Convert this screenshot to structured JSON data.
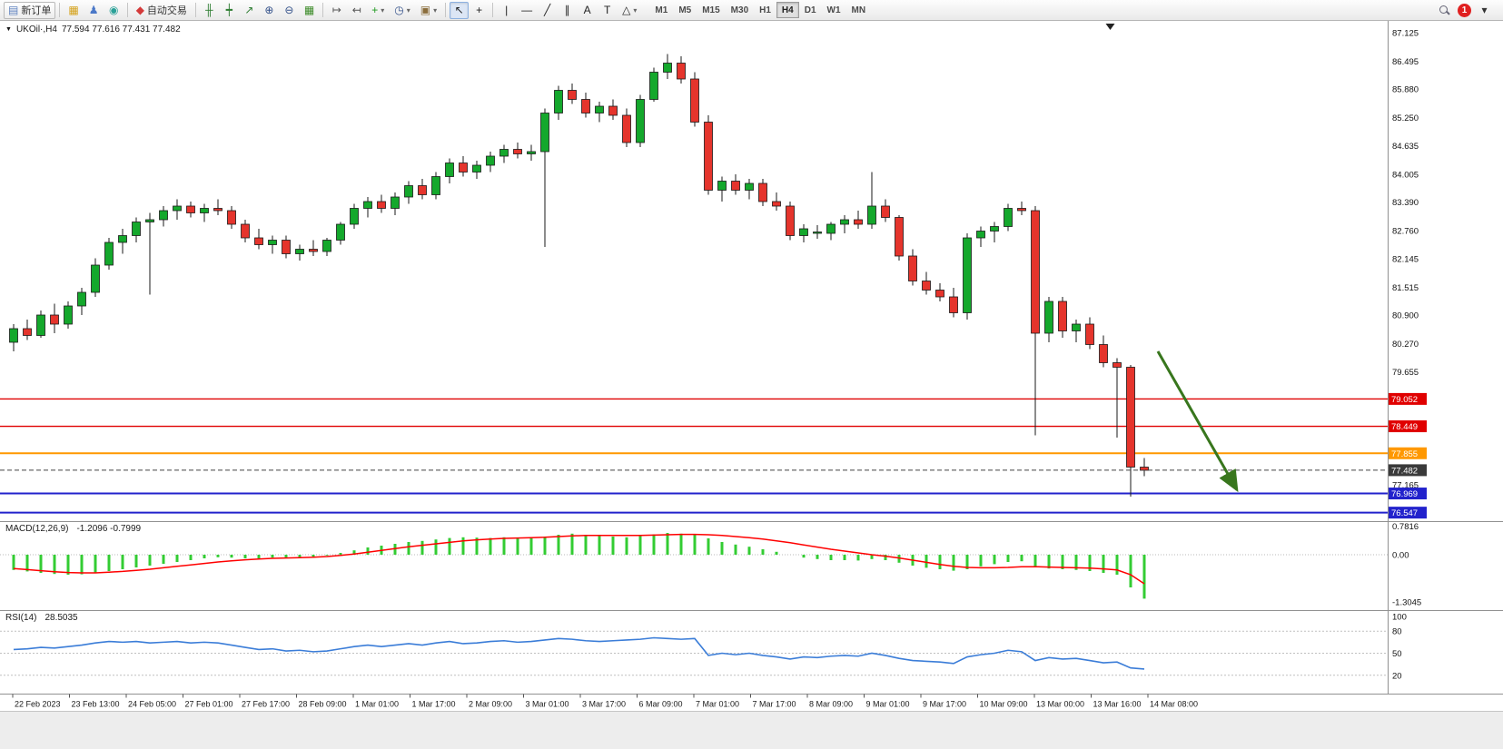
{
  "glyphs": {
    "symbol_dropdown": "▼"
  },
  "toolbar": {
    "notification_count": "1",
    "overflow_glyph": "▾",
    "timeframes": [
      "M1",
      "M5",
      "M15",
      "M30",
      "H1",
      "H4",
      "D1",
      "W1",
      "MN"
    ],
    "active_timeframe": "H4",
    "items": [
      {
        "type": "button",
        "name": "new-order-button",
        "glyph": "▤",
        "glyph_color": "#5b7fbe",
        "label": "新订单",
        "framed": true
      },
      {
        "type": "sep"
      },
      {
        "type": "button",
        "name": "new-chart-button",
        "glyph": "▦",
        "glyph_color": "#d4a017"
      },
      {
        "type": "button",
        "name": "profiles-button",
        "glyph": "♟",
        "glyph_color": "#4a78c8"
      },
      {
        "type": "button",
        "name": "community-button",
        "glyph": "◉",
        "glyph_color": "#2aa198"
      },
      {
        "type": "sep"
      },
      {
        "type": "button",
        "name": "autotrading-button",
        "glyph": "◆",
        "glyph_color": "#d43a3a",
        "label": "自动交易"
      },
      {
        "type": "sep"
      },
      {
        "type": "button",
        "name": "bar-chart-mode-button",
        "glyph": "╫",
        "glyph_color": "#2e7d32"
      },
      {
        "type": "button",
        "name": "candlestick-mode-button",
        "glyph": "┿",
        "glyph_color": "#2e7d32"
      },
      {
        "type": "button",
        "name": "line-chart-mode-button",
        "glyph": "↗",
        "glyph_color": "#2e7d32"
      },
      {
        "type": "button",
        "name": "zoom-in-button",
        "glyph": "⊕",
        "glyph_color": "#33518a"
      },
      {
        "type": "button",
        "name": "zoom-out-button",
        "glyph": "⊖",
        "glyph_color": "#33518a"
      },
      {
        "type": "button",
        "name": "tile-windows-button",
        "glyph": "▦",
        "glyph_color": "#3a8a26"
      },
      {
        "type": "sep"
      },
      {
        "type": "button",
        "name": "auto-scroll-button",
        "glyph": "↦",
        "glyph_color": "#555555"
      },
      {
        "type": "button",
        "name": "chart-shift-button",
        "glyph": "↤",
        "glyph_color": "#555555"
      },
      {
        "type": "button",
        "name": "indicators-button",
        "glyph": "+",
        "glyph_color": "#1e9b1e",
        "dropdown": true
      },
      {
        "type": "button",
        "name": "periods-button",
        "glyph": "◷",
        "glyph_color": "#33518a",
        "dropdown": true
      },
      {
        "type": "button",
        "name": "templates-button",
        "glyph": "▣",
        "glyph_color": "#8a6d3b",
        "dropdown": true
      },
      {
        "type": "sep"
      },
      {
        "type": "button",
        "name": "cursor-button",
        "glyph": "↖",
        "glyph_color": "#222222",
        "active": true
      },
      {
        "type": "button",
        "name": "crosshair-button",
        "glyph": "+",
        "glyph_color": "#222222"
      },
      {
        "type": "sep"
      },
      {
        "type": "button",
        "name": "vertical-line-button",
        "glyph": "|",
        "glyph_color": "#222222"
      },
      {
        "type": "button",
        "name": "horizontal-line-button",
        "glyph": "—",
        "glyph_color": "#222222"
      },
      {
        "type": "button",
        "name": "trendline-button",
        "glyph": "╱",
        "glyph_color": "#222222"
      },
      {
        "type": "button",
        "name": "channel-button",
        "glyph": "∥",
        "glyph_color": "#222222"
      },
      {
        "type": "button",
        "name": "text-button",
        "glyph": "A",
        "glyph_color": "#222222"
      },
      {
        "type": "button",
        "name": "text-label-button",
        "glyph": "T",
        "glyph_color": "#222222"
      },
      {
        "type": "button",
        "name": "shapes-button",
        "glyph": "△",
        "glyph_color": "#222222",
        "dropdown": true
      }
    ]
  },
  "chart_data": {
    "type": "candlestick",
    "symbol_period": "UKOil·,H4",
    "ohlc_display": "77.594 77.616 77.431 77.482",
    "quote": {
      "open": "77.594",
      "high": "77.616",
      "low": "77.431",
      "close": "77.482"
    },
    "price_axis": {
      "max": 87.34,
      "min": 76.42,
      "ticks": [
        "87.125",
        "86.495",
        "85.880",
        "85.250",
        "84.635",
        "84.005",
        "83.390",
        "82.760",
        "82.145",
        "81.515",
        "80.900",
        "80.270",
        "79.655",
        "77.165"
      ]
    },
    "time_labels": [
      "22 Feb 2023",
      "23 Feb 13:00",
      "24 Feb 05:00",
      "27 Feb 01:00",
      "27 Feb 17:00",
      "28 Feb 09:00",
      "1 Mar 01:00",
      "1 Mar 17:00",
      "2 Mar 09:00",
      "3 Mar 01:00",
      "3 Mar 17:00",
      "6 Mar 09:00",
      "7 Mar 01:00",
      "7 Mar 17:00",
      "8 Mar 09:00",
      "9 Mar 01:00",
      "9 Mar 17:00",
      "10 Mar 09:00",
      "13 Mar 00:00",
      "13 Mar 16:00",
      "14 Mar 08:00"
    ],
    "ohlc": [
      [
        80.3,
        80.7,
        80.1,
        80.6
      ],
      [
        80.6,
        80.8,
        80.35,
        80.45
      ],
      [
        80.45,
        81.0,
        80.4,
        80.9
      ],
      [
        80.9,
        81.15,
        80.5,
        80.7
      ],
      [
        80.7,
        81.2,
        80.6,
        81.1
      ],
      [
        81.1,
        81.5,
        80.9,
        81.4
      ],
      [
        81.4,
        82.15,
        81.3,
        82.0
      ],
      [
        82.0,
        82.6,
        81.9,
        82.5
      ],
      [
        82.5,
        82.8,
        82.25,
        82.65
      ],
      [
        82.65,
        83.05,
        82.5,
        82.95
      ],
      [
        82.95,
        83.15,
        81.35,
        83.0
      ],
      [
        83.0,
        83.3,
        82.85,
        83.2
      ],
      [
        83.2,
        83.45,
        83.0,
        83.3
      ],
      [
        83.3,
        83.4,
        83.05,
        83.15
      ],
      [
        83.15,
        83.35,
        82.95,
        83.25
      ],
      [
        83.25,
        83.45,
        83.1,
        83.2
      ],
      [
        83.2,
        83.3,
        82.8,
        82.9
      ],
      [
        82.9,
        83.0,
        82.5,
        82.6
      ],
      [
        82.6,
        82.8,
        82.35,
        82.45
      ],
      [
        82.45,
        82.65,
        82.25,
        82.55
      ],
      [
        82.55,
        82.65,
        82.15,
        82.25
      ],
      [
        82.25,
        82.45,
        82.1,
        82.35
      ],
      [
        82.35,
        82.55,
        82.2,
        82.3
      ],
      [
        82.3,
        82.6,
        82.2,
        82.55
      ],
      [
        82.55,
        82.95,
        82.45,
        82.9
      ],
      [
        82.9,
        83.35,
        82.8,
        83.25
      ],
      [
        83.25,
        83.5,
        83.05,
        83.4
      ],
      [
        83.4,
        83.55,
        83.15,
        83.25
      ],
      [
        83.25,
        83.6,
        83.1,
        83.5
      ],
      [
        83.5,
        83.85,
        83.35,
        83.75
      ],
      [
        83.75,
        83.9,
        83.45,
        83.55
      ],
      [
        83.55,
        84.05,
        83.45,
        83.95
      ],
      [
        83.95,
        84.35,
        83.8,
        84.25
      ],
      [
        84.25,
        84.4,
        83.95,
        84.05
      ],
      [
        84.05,
        84.3,
        83.9,
        84.2
      ],
      [
        84.2,
        84.5,
        84.05,
        84.4
      ],
      [
        84.4,
        84.65,
        84.25,
        84.55
      ],
      [
        84.55,
        84.7,
        84.35,
        84.45
      ],
      [
        84.45,
        84.65,
        84.3,
        84.5
      ],
      [
        84.5,
        85.45,
        82.4,
        85.35
      ],
      [
        85.35,
        85.95,
        85.2,
        85.85
      ],
      [
        85.85,
        86.0,
        85.55,
        85.65
      ],
      [
        85.65,
        85.8,
        85.25,
        85.35
      ],
      [
        85.35,
        85.6,
        85.15,
        85.5
      ],
      [
        85.5,
        85.65,
        85.2,
        85.3
      ],
      [
        85.3,
        85.45,
        84.6,
        84.7
      ],
      [
        84.7,
        85.75,
        84.6,
        85.65
      ],
      [
        85.65,
        86.35,
        85.6,
        86.25
      ],
      [
        86.25,
        86.65,
        86.1,
        86.45
      ],
      [
        86.45,
        86.6,
        86.0,
        86.1
      ],
      [
        86.1,
        86.25,
        85.05,
        85.15
      ],
      [
        85.15,
        85.3,
        83.55,
        83.65
      ],
      [
        83.65,
        83.95,
        83.4,
        83.85
      ],
      [
        83.85,
        84.0,
        83.55,
        83.65
      ],
      [
        83.65,
        83.9,
        83.45,
        83.8
      ],
      [
        83.8,
        83.9,
        83.3,
        83.4
      ],
      [
        83.4,
        83.6,
        83.2,
        83.3
      ],
      [
        83.3,
        83.4,
        82.55,
        82.65
      ],
      [
        82.65,
        82.9,
        82.5,
        82.8
      ],
      [
        82.7,
        82.88,
        82.58,
        82.73
      ],
      [
        82.7,
        82.95,
        82.55,
        82.9
      ],
      [
        82.9,
        83.1,
        82.7,
        83.0
      ],
      [
        83.0,
        83.2,
        82.8,
        82.9
      ],
      [
        82.9,
        84.05,
        82.8,
        83.3
      ],
      [
        83.3,
        83.45,
        82.95,
        83.05
      ],
      [
        83.05,
        83.1,
        82.1,
        82.2
      ],
      [
        82.2,
        82.35,
        81.55,
        81.65
      ],
      [
        81.65,
        81.85,
        81.35,
        81.45
      ],
      [
        81.45,
        81.6,
        81.2,
        81.3
      ],
      [
        81.3,
        81.5,
        80.85,
        80.95
      ],
      [
        80.95,
        82.7,
        80.8,
        82.6
      ],
      [
        82.6,
        82.85,
        82.4,
        82.75
      ],
      [
        82.75,
        82.95,
        82.5,
        82.85
      ],
      [
        82.85,
        83.35,
        82.75,
        83.25
      ],
      [
        83.25,
        83.4,
        83.1,
        83.2
      ],
      [
        83.2,
        83.3,
        78.25,
        80.5
      ],
      [
        80.5,
        81.3,
        80.3,
        81.2
      ],
      [
        81.2,
        81.3,
        80.4,
        80.55
      ],
      [
        80.55,
        80.8,
        80.3,
        80.7
      ],
      [
        80.7,
        80.85,
        80.15,
        80.25
      ],
      [
        80.25,
        80.45,
        79.75,
        79.85
      ],
      [
        79.85,
        79.95,
        78.2,
        79.75
      ],
      [
        79.75,
        79.8,
        76.9,
        77.55
      ],
      [
        77.55,
        77.75,
        77.35,
        77.48
      ]
    ],
    "hlines": [
      {
        "value": 79.052,
        "label": "79.052",
        "color": "#e00000",
        "width": 1.4
      },
      {
        "value": 78.449,
        "label": "78.449",
        "color": "#e00000",
        "width": 1.4
      },
      {
        "value": 77.855,
        "label": "77.855",
        "color": "#ff9800",
        "width": 2
      },
      {
        "value": 76.969,
        "label": "76.969",
        "color": "#2222cc",
        "width": 2
      },
      {
        "value": 76.547,
        "label": "76.547",
        "color": "#2222cc",
        "width": 2
      }
    ],
    "current_price": {
      "value": 77.482,
      "label": "77.482",
      "color": "#3a3a3a"
    },
    "indicators": {
      "macd": {
        "label": "MACD(12,26,9)",
        "value_text": "-1.2096 -0.7999",
        "axis_ticks": [
          "0.7816",
          "0.00",
          "-1.3045"
        ],
        "range": [
          -1.45,
          0.85
        ],
        "histogram": [
          -0.42,
          -0.46,
          -0.5,
          -0.53,
          -0.55,
          -0.54,
          -0.5,
          -0.45,
          -0.4,
          -0.35,
          -0.3,
          -0.25,
          -0.2,
          -0.15,
          -0.1,
          -0.07,
          -0.08,
          -0.1,
          -0.1,
          -0.08,
          -0.1,
          -0.09,
          -0.06,
          -0.02,
          0.05,
          0.12,
          0.2,
          0.25,
          0.3,
          0.35,
          0.38,
          0.42,
          0.46,
          0.48,
          0.47,
          0.46,
          0.48,
          0.47,
          0.45,
          0.5,
          0.55,
          0.58,
          0.55,
          0.52,
          0.5,
          0.48,
          0.52,
          0.56,
          0.6,
          0.58,
          0.55,
          0.45,
          0.35,
          0.28,
          0.22,
          0.15,
          0.08,
          0.0,
          -0.08,
          -0.12,
          -0.15,
          -0.15,
          -0.16,
          -0.12,
          -0.15,
          -0.22,
          -0.3,
          -0.36,
          -0.4,
          -0.44,
          -0.4,
          -0.32,
          -0.26,
          -0.2,
          -0.18,
          -0.35,
          -0.38,
          -0.4,
          -0.42,
          -0.45,
          -0.5,
          -0.55,
          -0.9,
          -1.21
        ],
        "signal": [
          -0.38,
          -0.41,
          -0.44,
          -0.47,
          -0.49,
          -0.5,
          -0.5,
          -0.48,
          -0.46,
          -0.43,
          -0.4,
          -0.36,
          -0.32,
          -0.28,
          -0.24,
          -0.2,
          -0.17,
          -0.14,
          -0.12,
          -0.1,
          -0.09,
          -0.08,
          -0.07,
          -0.05,
          -0.02,
          0.02,
          0.07,
          0.12,
          0.17,
          0.22,
          0.26,
          0.3,
          0.34,
          0.38,
          0.41,
          0.43,
          0.45,
          0.46,
          0.47,
          0.48,
          0.5,
          0.52,
          0.53,
          0.53,
          0.53,
          0.53,
          0.53,
          0.54,
          0.55,
          0.56,
          0.56,
          0.55,
          0.53,
          0.5,
          0.47,
          0.43,
          0.38,
          0.33,
          0.27,
          0.21,
          0.15,
          0.1,
          0.05,
          0.0,
          -0.04,
          -0.09,
          -0.15,
          -0.21,
          -0.27,
          -0.32,
          -0.35,
          -0.36,
          -0.36,
          -0.35,
          -0.33,
          -0.33,
          -0.34,
          -0.35,
          -0.36,
          -0.37,
          -0.39,
          -0.42,
          -0.55,
          -0.8
        ]
      },
      "rsi": {
        "label": "RSI(14)",
        "value_text": "28.5035",
        "axis_ticks": [
          "100",
          "80",
          "50",
          "20"
        ],
        "levels": [
          80,
          50,
          20
        ],
        "range": [
          0,
          100
        ],
        "values": [
          55,
          56,
          58,
          57,
          59,
          61,
          64,
          66,
          65,
          66,
          64,
          65,
          66,
          64,
          65,
          64,
          61,
          58,
          55,
          56,
          53,
          54,
          52,
          53,
          56,
          59,
          61,
          59,
          61,
          63,
          61,
          64,
          66,
          63,
          64,
          66,
          67,
          65,
          66,
          68,
          70,
          69,
          67,
          66,
          67,
          68,
          69,
          71,
          70,
          69,
          70,
          47,
          50,
          48,
          50,
          47,
          45,
          42,
          45,
          44,
          46,
          47,
          46,
          50,
          47,
          43,
          40,
          39,
          38,
          36,
          45,
          48,
          50,
          54,
          52,
          40,
          44,
          42,
          43,
          40,
          37,
          38,
          30,
          28.5
        ]
      }
    },
    "annotations": {
      "arrow": {
        "from_bar": 84,
        "from_price": 80.1,
        "to_bar": 89.8,
        "to_price": 77.05,
        "color": "#38761d"
      },
      "shift_marker_bar": 80.5
    },
    "colors": {
      "up": "#14a82c",
      "down": "#e5342c",
      "wick": "#1a1a1a",
      "candle_outline": "#1a1a1a",
      "macd_histogram": "#33cc33",
      "macd_signal": "#ff0000",
      "rsi_line": "#3b7dd8"
    }
  }
}
